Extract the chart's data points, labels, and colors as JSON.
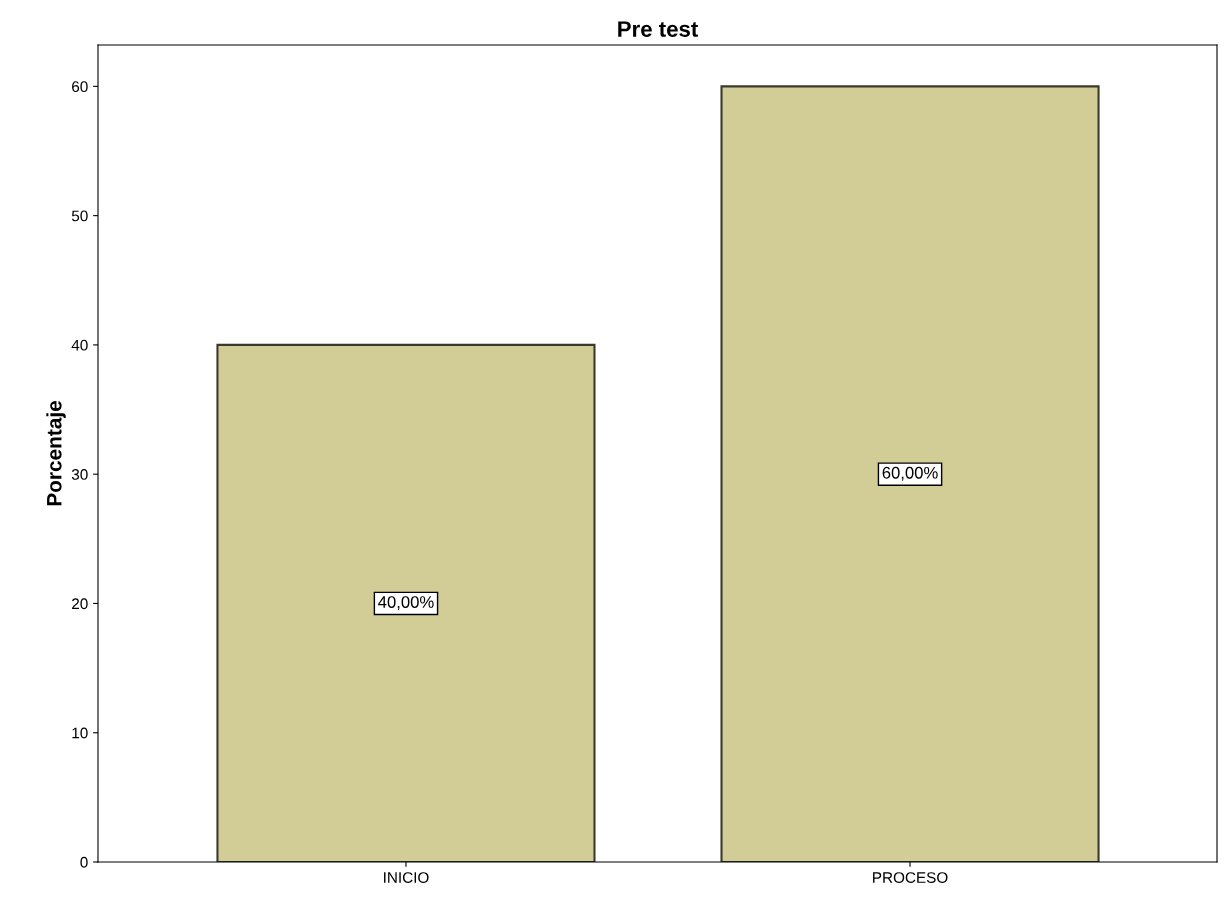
{
  "chart_data": {
    "type": "bar",
    "title": "Pre test",
    "ylabel": "Porcentaje",
    "categories": [
      "INICIO",
      "PROCESO"
    ],
    "values": [
      40,
      60
    ],
    "value_labels": [
      "40,00%",
      "60,00%"
    ],
    "color": "#d2cc96",
    "ylim": [
      0,
      63.2
    ],
    "yticks": [
      0,
      10,
      20,
      30,
      40,
      50,
      60
    ],
    "grid": false
  }
}
